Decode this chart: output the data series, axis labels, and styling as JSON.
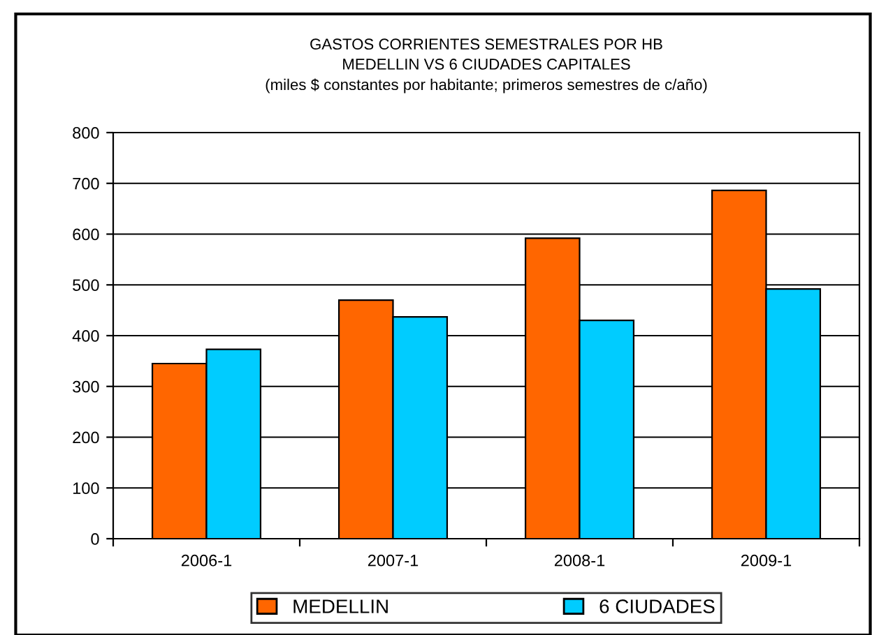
{
  "chart_data": {
    "type": "bar",
    "title": "GASTOS CORRIENTES SEMESTRALES POR HB\nMEDELLIN VS 6 CIUDADES CAPITALES\n(miles $ constantes por habitante; primeros semestres de c/año)",
    "categories": [
      "2006-1",
      "2007-1",
      "2008-1",
      "2009-1"
    ],
    "series": [
      {
        "name": "MEDELLIN",
        "color": "#ff6600",
        "values": [
          345,
          470,
          592,
          686
        ]
      },
      {
        "name": "6 CIUDADES",
        "color": "#00ccff",
        "values": [
          373,
          437,
          430,
          492
        ]
      }
    ],
    "ylim": [
      0,
      800
    ],
    "yticks": [
      0,
      100,
      200,
      300,
      400,
      500,
      600,
      700,
      800
    ],
    "grid": "y",
    "legend": "bottom"
  }
}
